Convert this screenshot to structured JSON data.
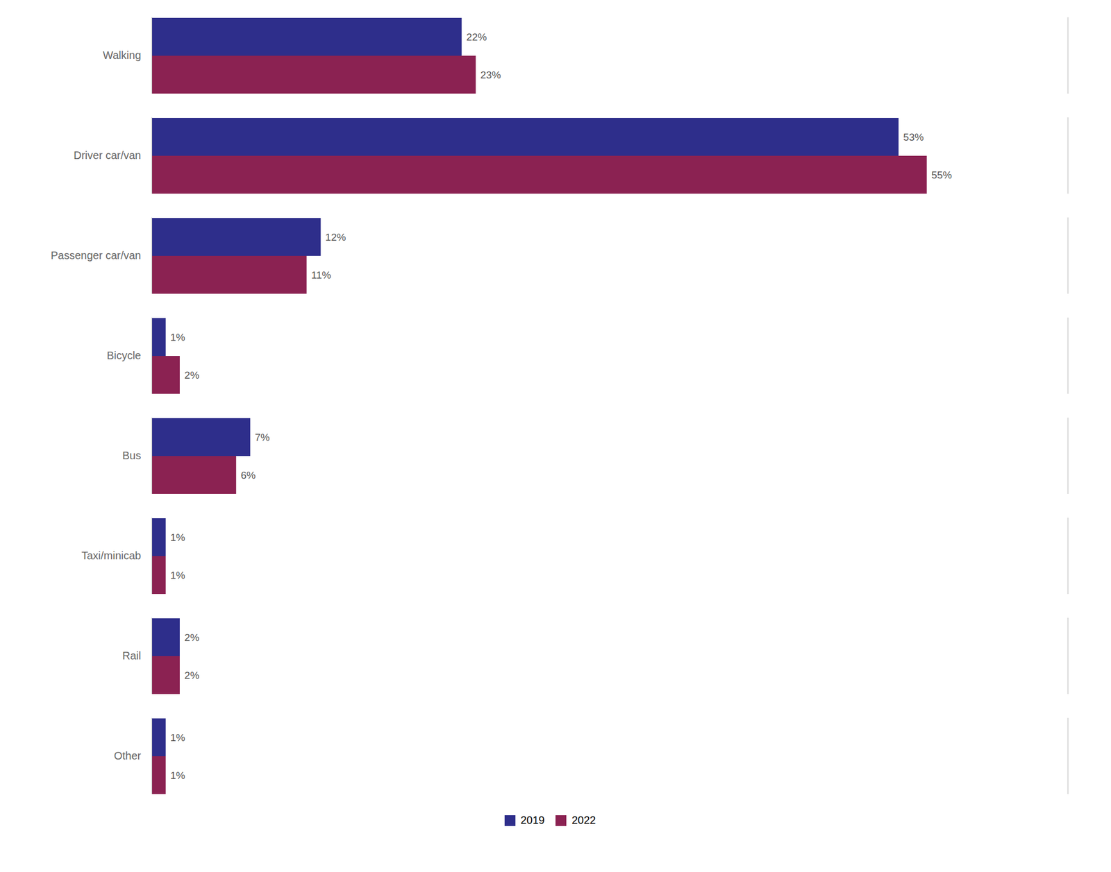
{
  "chart_data": {
    "type": "bar",
    "orientation": "horizontal",
    "categories": [
      "Walking",
      "Driver car/van",
      "Passenger car/van",
      "Bicycle",
      "Bus",
      "Taxi/minicab",
      "Rail",
      "Other"
    ],
    "series": [
      {
        "name": "2019",
        "color": "#2E2E8B",
        "values": [
          22,
          53,
          12,
          1,
          7,
          1,
          2,
          1
        ],
        "value_labels": [
          "22%",
          "53%",
          "12%",
          "1%",
          "7%",
          "1%",
          "2%",
          "1%"
        ]
      },
      {
        "name": "2022",
        "color": "#8B2252",
        "values": [
          23,
          55,
          11,
          2,
          6,
          1,
          2,
          1
        ],
        "value_labels": [
          "23%",
          "55%",
          "11%",
          "2%",
          "6%",
          "1%",
          "2%",
          "1%"
        ]
      }
    ],
    "xlim": [
      0,
      65
    ],
    "tick_labels": "y",
    "data_labels": true,
    "grid": false,
    "legend": "bottom"
  }
}
